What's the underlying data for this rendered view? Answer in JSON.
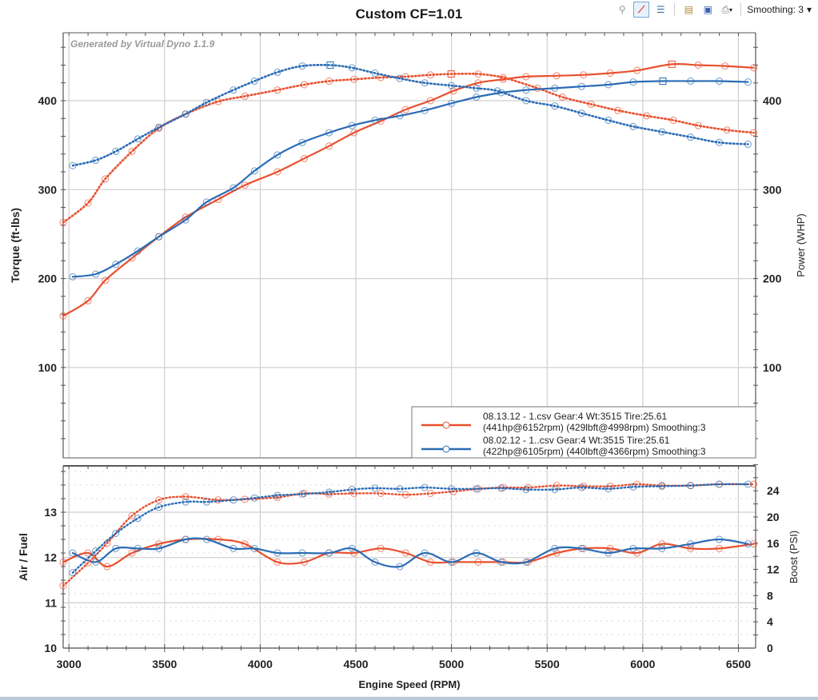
{
  "toolbar": {
    "buttons": [
      {
        "name": "zoom-out-icon",
        "glyph": "🔍",
        "active": false
      },
      {
        "name": "line-tool-icon",
        "glyph": "⟋",
        "active": true
      },
      {
        "name": "list-view-icon",
        "glyph": "☰",
        "active": false
      },
      {
        "name": "clipboard-icon",
        "glyph": "📋",
        "active": false
      },
      {
        "name": "save-icon",
        "glyph": "💾",
        "active": false
      },
      {
        "name": "print-icon",
        "glyph": "🖨",
        "active": false
      }
    ],
    "smoothing_label": "Smoothing: 3",
    "dropdown_arrow": "▾"
  },
  "watermark": "Generated by Virtual Dyno 1.1.9",
  "colors": {
    "red": "#e8502f",
    "blue": "#2b6cb5",
    "grid": "#c8c8c8"
  },
  "chart_data": [
    {
      "type": "line",
      "title": "Custom CF=1.01",
      "xlabel": "",
      "ylabel": "Torque (ft-lbs)",
      "ylabel_right": "Power (WHP)",
      "xlim": [
        2970,
        6590
      ],
      "ylim": [
        0,
        470
      ],
      "yticks": [
        100,
        200,
        300,
        400
      ],
      "grid": true,
      "legend_position": "bottom-right",
      "legend": [
        {
          "line1": "08.13.12 - 1.csv Gear:4 Wt:3515 Tire:25.61",
          "line2": "(441hp@6152rpm) (429lbft@4998rpm) Smoothing:3",
          "color": "#e8502f"
        },
        {
          "line1": "08.02.12 - 1..csv Gear:4 Wt:3515 Tire:25.61",
          "line2": "(422hp@6105rpm) (440lbft@4366rpm) Smoothing:3",
          "color": "#2b6cb5"
        }
      ],
      "series": [
        {
          "name": "08.13.12 power (WHP)",
          "color": "#e8502f",
          "style": "solid",
          "x": [
            2970,
            3100,
            3190,
            3330,
            3470,
            3610,
            3780,
            3920,
            4090,
            4230,
            4360,
            4490,
            4630,
            4760,
            4890,
            5010,
            5140,
            5270,
            5390,
            5550,
            5690,
            5830,
            5970,
            6152,
            6290,
            6430,
            6580
          ],
          "y": [
            158,
            175,
            198,
            223,
            247,
            269,
            289,
            305,
            320,
            335,
            349,
            364,
            377,
            390,
            400,
            411,
            420,
            424,
            427,
            428,
            429,
            431,
            434,
            441,
            440,
            439,
            437
          ],
          "peak_index": 23
        },
        {
          "name": "08.13.12 torque (ft-lbs)",
          "color": "#e8502f",
          "style": "dotted",
          "x": [
            2970,
            3100,
            3190,
            3330,
            3470,
            3610,
            3780,
            3920,
            4090,
            4230,
            4360,
            4490,
            4630,
            4760,
            4890,
            4998,
            5140,
            5270,
            5450,
            5580,
            5730,
            5870,
            6020,
            6160,
            6290,
            6440,
            6580
          ],
          "y": [
            263,
            285,
            312,
            343,
            369,
            385,
            399,
            405,
            412,
            418,
            422,
            424,
            426,
            427,
            429,
            430,
            430,
            426,
            414,
            404,
            396,
            389,
            383,
            378,
            372,
            367,
            364
          ],
          "peak_index": 15
        },
        {
          "name": "08.02.12 torque (ft-lbs)",
          "color": "#2b6cb5",
          "style": "dotted",
          "x": [
            3020,
            3140,
            3245,
            3360,
            3470,
            3610,
            3720,
            3860,
            3970,
            4090,
            4220,
            4366,
            4480,
            4600,
            4730,
            4860,
            5000,
            5130,
            5240,
            5390,
            5540,
            5680,
            5820,
            5950,
            6100,
            6250,
            6400,
            6550
          ],
          "y": [
            327,
            333,
            343,
            357,
            370,
            385,
            398,
            412,
            422,
            432,
            439,
            440,
            437,
            431,
            425,
            420,
            417,
            414,
            411,
            400,
            394,
            386,
            378,
            371,
            365,
            359,
            353,
            351
          ],
          "peak_index": 11
        },
        {
          "name": "08.02.12 power (WHP)",
          "color": "#2b6cb5",
          "style": "solid",
          "x": [
            3020,
            3140,
            3245,
            3360,
            3470,
            3610,
            3720,
            3860,
            3970,
            4090,
            4220,
            4360,
            4480,
            4600,
            4730,
            4860,
            5000,
            5130,
            5260,
            5390,
            5540,
            5680,
            5820,
            5950,
            6105,
            6250,
            6400,
            6550
          ],
          "y": [
            202,
            205,
            216,
            231,
            247,
            266,
            286,
            302,
            321,
            339,
            353,
            364,
            372,
            378,
            383,
            389,
            397,
            404,
            409,
            412,
            414,
            416,
            418,
            421,
            422,
            422,
            422,
            421
          ],
          "peak_index": 24
        }
      ]
    },
    {
      "type": "line",
      "title": "",
      "xlabel": "Engine Speed (RPM)",
      "ylabel": "Air / Fuel",
      "ylabel_right": "Boost (PSI)",
      "xlim": [
        2970,
        6590
      ],
      "ylim": [
        10,
        14
      ],
      "ylim_right": [
        0,
        28.7
      ],
      "xticks": [
        3000,
        3500,
        4000,
        4500,
        5000,
        5500,
        6000,
        6500
      ],
      "yticks": [
        10,
        11,
        12,
        13
      ],
      "yticks_right": [
        0,
        4,
        8,
        12,
        16,
        20,
        24
      ],
      "grid": true,
      "series": [
        {
          "name": "08.13.12 AFR",
          "color": "#e8502f",
          "style": "solid",
          "axis": "left",
          "x": [
            2970,
            3100,
            3200,
            3330,
            3470,
            3610,
            3780,
            3920,
            4090,
            4230,
            4360,
            4490,
            4630,
            4760,
            4890,
            5010,
            5140,
            5270,
            5400,
            5550,
            5690,
            5830,
            5970,
            6100,
            6250,
            6400,
            6580
          ],
          "y": [
            11.9,
            12.1,
            11.8,
            12.1,
            12.3,
            12.4,
            12.4,
            12.3,
            11.9,
            11.9,
            12.1,
            12.1,
            12.2,
            12.1,
            11.9,
            11.9,
            11.9,
            11.9,
            11.9,
            12.1,
            12.2,
            12.2,
            12.1,
            12.3,
            12.2,
            12.2,
            12.3
          ]
        },
        {
          "name": "08.02.12 AFR",
          "color": "#2b6cb5",
          "style": "solid",
          "axis": "left",
          "x": [
            3020,
            3140,
            3245,
            3360,
            3470,
            3610,
            3720,
            3860,
            3970,
            4090,
            4220,
            4360,
            4480,
            4600,
            4730,
            4860,
            5000,
            5130,
            5260,
            5390,
            5540,
            5680,
            5820,
            5950,
            6100,
            6250,
            6400,
            6550
          ],
          "y": [
            12.1,
            11.9,
            12.2,
            12.2,
            12.2,
            12.4,
            12.4,
            12.2,
            12.2,
            12.1,
            12.1,
            12.1,
            12.2,
            11.9,
            11.8,
            12.1,
            11.9,
            12.1,
            11.9,
            11.9,
            12.2,
            12.2,
            12.1,
            12.2,
            12.2,
            12.3,
            12.4,
            12.3
          ]
        },
        {
          "name": "08.13.12 Boost",
          "color": "#e8502f",
          "style": "dotted",
          "axis": "right",
          "x": [
            2970,
            3100,
            3200,
            3330,
            3470,
            3610,
            3780,
            3920,
            4090,
            4230,
            4360,
            4490,
            4630,
            4760,
            4890,
            5010,
            5140,
            5270,
            5400,
            5550,
            5690,
            5830,
            5970,
            6100,
            6250,
            6400,
            6580
          ],
          "y": [
            9.5,
            13,
            16,
            20.2,
            22.6,
            23.1,
            22.6,
            22.7,
            23,
            23.6,
            23.5,
            23.6,
            23.6,
            23.4,
            23.6,
            23.9,
            24.3,
            24.5,
            24.5,
            24.8,
            24.7,
            24.7,
            25,
            24.8,
            24.8,
            25,
            25
          ]
        },
        {
          "name": "08.02.12 Boost",
          "color": "#2b6cb5",
          "style": "dotted",
          "axis": "right",
          "x": [
            3020,
            3140,
            3245,
            3360,
            3470,
            3610,
            3720,
            3860,
            3970,
            4090,
            4220,
            4360,
            4480,
            4600,
            4730,
            4860,
            5000,
            5130,
            5260,
            5390,
            5540,
            5680,
            5820,
            5950,
            6100,
            6250,
            6400,
            6550
          ],
          "y": [
            11.5,
            14.8,
            17.5,
            19.8,
            21.5,
            22.3,
            22.3,
            22.6,
            22.9,
            23.3,
            23.5,
            23.8,
            24.2,
            24.4,
            24.3,
            24.5,
            24.3,
            24.3,
            24.4,
            24.2,
            24.2,
            24.5,
            24.3,
            24.6,
            24.7,
            24.8,
            25,
            25
          ]
        }
      ]
    }
  ]
}
